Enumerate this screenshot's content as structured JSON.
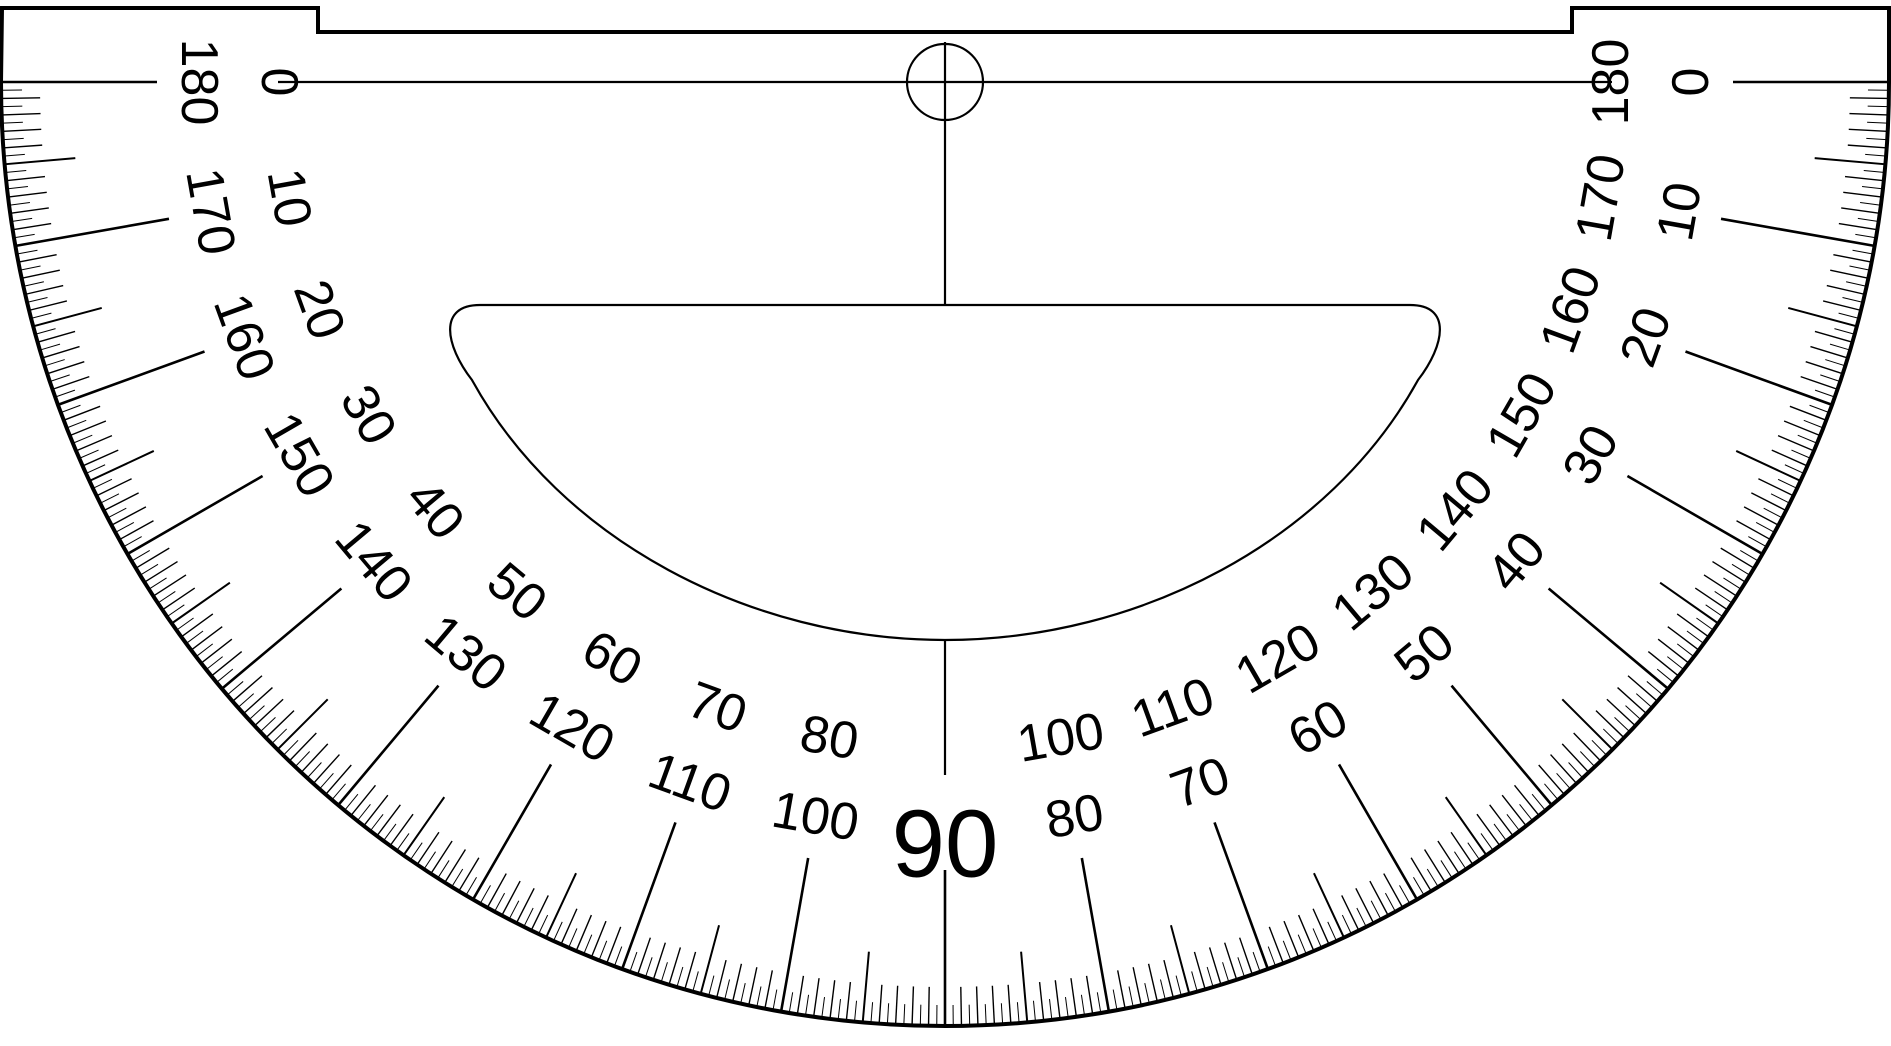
{
  "protractor": {
    "outer_scale": [
      "0",
      "10",
      "20",
      "30",
      "40",
      "50",
      "60",
      "70",
      "80",
      "90",
      "100",
      "110",
      "120",
      "130",
      "140",
      "150",
      "160",
      "170",
      "180"
    ],
    "inner_scale": [
      "180",
      "170",
      "160",
      "150",
      "140",
      "130",
      "120",
      "110",
      "100",
      "90",
      "80",
      "70",
      "60",
      "50",
      "40",
      "30",
      "20",
      "10",
      "0"
    ],
    "center_label": "90",
    "range_degrees": [
      0,
      180
    ],
    "tick_interval_degrees": 1,
    "colors": {
      "ink": "#000000",
      "paper": "#ffffff"
    }
  }
}
